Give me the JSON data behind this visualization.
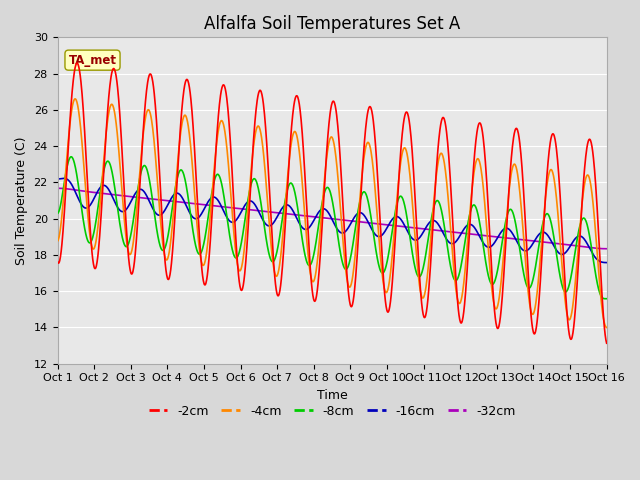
{
  "title": "Alfalfa Soil Temperatures Set A",
  "xlabel": "Time",
  "ylabel": "Soil Temperature (C)",
  "ylim": [
    12,
    30
  ],
  "xlim": [
    0,
    15
  ],
  "xtick_labels": [
    "Oct 1",
    "Oct 2",
    "Oct 3",
    "Oct 4",
    "Oct 5",
    "Oct 6",
    "Oct 7",
    "Oct 8",
    "Oct 9",
    "Oct 10",
    "Oct 11",
    "Oct 12",
    "Oct 13",
    "Oct 14",
    "Oct 15",
    "Oct 16"
  ],
  "ytick_vals": [
    12,
    14,
    16,
    18,
    20,
    22,
    24,
    26,
    28,
    30
  ],
  "series_colors": {
    "-2cm": "#FF0000",
    "-4cm": "#FF8800",
    "-8cm": "#00CC00",
    "-16cm": "#0000BB",
    "-32cm": "#AA00BB"
  },
  "ta_met_label": "TA_met",
  "ta_met_color": "#990000",
  "background_color": "#D8D8D8",
  "plot_bg_color": "#E8E8E8",
  "title_fontsize": 12,
  "axis_label_fontsize": 9,
  "tick_fontsize": 8,
  "legend_fontsize": 9
}
